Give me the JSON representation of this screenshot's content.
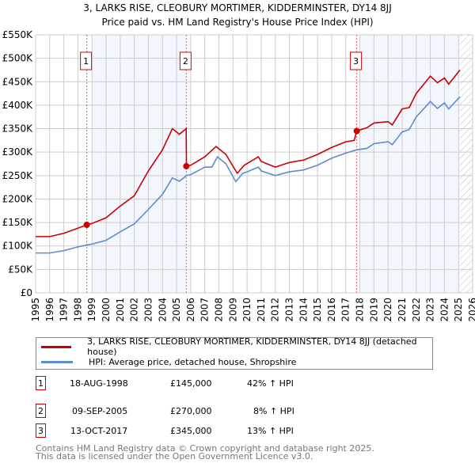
{
  "chart_data": {
    "type": "line",
    "title": "3, LARKS RISE, CLEOBURY MORTIMER, KIDDERMINSTER, DY14 8JJ",
    "subtitle": "Price paid vs. HM Land Registry's House Price Index (HPI)",
    "xlim": [
      1995,
      2026
    ],
    "ylim": [
      0,
      550000
    ],
    "yticks": [
      "£0",
      "£50K",
      "£100K",
      "£150K",
      "£200K",
      "£250K",
      "£300K",
      "£350K",
      "£400K",
      "£450K",
      "£500K",
      "£550K"
    ],
    "xticks": [
      "1995",
      "1996",
      "1997",
      "1998",
      "1999",
      "2000",
      "2001",
      "2002",
      "2003",
      "2004",
      "2005",
      "2006",
      "2007",
      "2008",
      "2009",
      "2010",
      "2011",
      "2012",
      "2013",
      "2014",
      "2015",
      "2016",
      "2017",
      "2018",
      "2019",
      "2020",
      "2021",
      "2022",
      "2023",
      "2024",
      "2025",
      "2026"
    ],
    "series": [
      {
        "name": "3, LARKS RISE, CLEOBURY MORTIMER, KIDDERMINSTER, DY14 8JJ (detached house)",
        "color": "#cc0000",
        "x": [
          1995,
          1996,
          1997,
          1998,
          1998.63,
          1999,
          2000,
          2001,
          2002,
          2003,
          2004,
          2004.7,
          2005.2,
          2005.68,
          2005.7,
          2006,
          2007,
          2007.8,
          2008.5,
          2009.3,
          2009.8,
          2010.8,
          2011,
          2012,
          2013,
          2014,
          2015,
          2016,
          2017,
          2017.6,
          2017.78,
          2018.5,
          2019,
          2020,
          2020.3,
          2021,
          2021.5,
          2022,
          2023,
          2023.5,
          2024,
          2024.3,
          2025.1
        ],
        "y": [
          120,
          120,
          127,
          138,
          145,
          148,
          160,
          185,
          207,
          260,
          305,
          350,
          338,
          350,
          270,
          272,
          290,
          312,
          295,
          255,
          272,
          290,
          280,
          268,
          278,
          283,
          295,
          310,
          322,
          325,
          345,
          352,
          362,
          365,
          358,
          392,
          395,
          425,
          462,
          448,
          458,
          445,
          475
        ]
      },
      {
        "name": "HPI: Average price, detached house, Shropshire",
        "color": "#5b8bd0",
        "x": [
          1995,
          1996,
          1997,
          1998,
          1998.63,
          1999,
          2000,
          2001,
          2002,
          2003,
          2004,
          2004.7,
          2005.2,
          2005.7,
          2006,
          2007,
          2007.5,
          2007.9,
          2008.5,
          2009.2,
          2009.7,
          2010,
          2010.8,
          2011,
          2012,
          2013,
          2014,
          2015,
          2016,
          2017,
          2017.8,
          2018.5,
          2019,
          2020,
          2020.3,
          2021,
          2021.5,
          2022,
          2023,
          2023.5,
          2024,
          2024.3,
          2025.1
        ],
        "y": [
          85,
          85,
          90,
          98,
          102,
          104,
          112,
          130,
          147,
          178,
          210,
          245,
          238,
          250,
          252,
          268,
          268,
          290,
          275,
          237,
          255,
          258,
          268,
          260,
          250,
          258,
          262,
          272,
          287,
          298,
          305,
          308,
          318,
          322,
          316,
          343,
          348,
          375,
          408,
          393,
          405,
          392,
          418
        ]
      }
    ],
    "y_units": "thousands GBP",
    "sales": [
      {
        "label": "1",
        "x": 1998.63,
        "y": 145,
        "date": "18-AUG-1998",
        "price": "£145,000",
        "hpi": "42% ↑ HPI"
      },
      {
        "label": "2",
        "x": 2005.69,
        "y": 270,
        "date": "09-SEP-2005",
        "price": "£270,000",
        "hpi": "8% ↑ HPI"
      },
      {
        "label": "3",
        "x": 2017.78,
        "y": 345,
        "date": "13-OCT-2017",
        "price": "£345,000",
        "hpi": "13% ↑ HPI"
      }
    ],
    "legend_placement": "bottom"
  },
  "footer": {
    "line1": "Contains HM Land Registry data © Crown copyright and database right 2025.",
    "line2": "This data is licensed under the Open Government Licence v3.0."
  }
}
